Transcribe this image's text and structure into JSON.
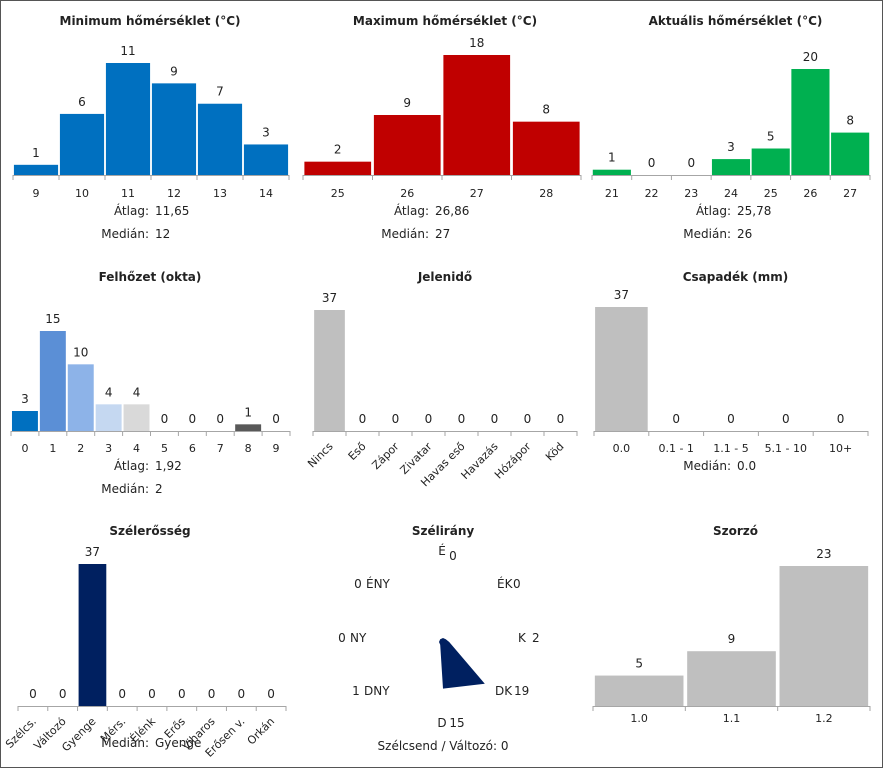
{
  "colors": {
    "blue": "#0070c0",
    "red": "#c00000",
    "green": "#00b050",
    "grey": "#bfbfbf",
    "navy": "#002060",
    "axis": "#a6a6a6",
    "text": "#222222",
    "cloud": [
      "#0070c0",
      "#5b8fd6",
      "#8db3e8",
      "#c5d8f1",
      "#d9d9d9",
      "#d9d9d9",
      "#d9d9d9",
      "#d9d9d9",
      "#595959",
      "#595959"
    ]
  },
  "chart_data": [
    {
      "id": "min",
      "type": "bar",
      "title": "Minimum hőmérséklet (°C)",
      "categories": [
        "9",
        "10",
        "11",
        "12",
        "13",
        "14"
      ],
      "values": [
        1,
        6,
        11,
        9,
        7,
        3
      ],
      "ylim": [
        0,
        11
      ],
      "stats": [
        {
          "label": "Átlag:",
          "value": "11,65"
        },
        {
          "label": "Medián:",
          "value": "12"
        }
      ]
    },
    {
      "id": "max",
      "type": "bar",
      "title": "Maximum hőmérséklet (°C)",
      "categories": [
        "25",
        "26",
        "27",
        "28"
      ],
      "values": [
        2,
        9,
        18,
        8
      ],
      "ylim": [
        0,
        18
      ],
      "stats": [
        {
          "label": "Átlag:",
          "value": "26,86"
        },
        {
          "label": "Medián:",
          "value": "27"
        }
      ]
    },
    {
      "id": "act",
      "type": "bar",
      "title": "Aktuális hőmérséklet (°C)",
      "categories": [
        "21",
        "22",
        "23",
        "24",
        "25",
        "26",
        "27"
      ],
      "values": [
        1,
        0,
        0,
        3,
        5,
        20,
        8
      ],
      "ylim": [
        0,
        20
      ],
      "stats": [
        {
          "label": "Átlag:",
          "value": "25,78"
        },
        {
          "label": "Medián:",
          "value": "26"
        }
      ]
    },
    {
      "id": "cloud",
      "type": "bar",
      "title": "Felhőzet (okta)",
      "categories": [
        "0",
        "1",
        "2",
        "3",
        "4",
        "5",
        "6",
        "7",
        "8",
        "9"
      ],
      "values": [
        3,
        15,
        10,
        4,
        4,
        0,
        0,
        0,
        1,
        0
      ],
      "ylim": [
        0,
        15
      ],
      "stats": [
        {
          "label": "Átlag:",
          "value": "1,92"
        },
        {
          "label": "Medián:",
          "value": "2"
        }
      ]
    },
    {
      "id": "wx",
      "type": "bar",
      "title": "Jelenidő",
      "categories": [
        "Nincs",
        "Eső",
        "Zápor",
        "Zivatar",
        "Havas eső",
        "Havazás",
        "Hózápor",
        "Köd"
      ],
      "values": [
        37,
        0,
        0,
        0,
        0,
        0,
        0,
        0
      ],
      "ylim": [
        0,
        37
      ],
      "stats": []
    },
    {
      "id": "precip",
      "type": "bar",
      "title": "Csapadék (mm)",
      "categories": [
        "0.0",
        "0.1 - 1",
        "1.1 - 5",
        "5.1 - 10",
        "10+"
      ],
      "values": [
        37,
        0,
        0,
        0,
        0
      ],
      "ylim": [
        0,
        37
      ],
      "stats": [
        {
          "label": "Medián:",
          "value": "0.0"
        }
      ]
    },
    {
      "id": "windspd",
      "type": "bar",
      "title": "Szélerősség",
      "categories": [
        "Szélcs.",
        "Változó",
        "Gyenge",
        "Mérs.",
        "Élénk",
        "Erős",
        "Viharos",
        "Erősen v.",
        "Orkán"
      ],
      "values": [
        0,
        0,
        37,
        0,
        0,
        0,
        0,
        0,
        0
      ],
      "ylim": [
        0,
        37
      ],
      "stats": [
        {
          "label": "Medián:",
          "value": "Gyenge"
        }
      ]
    },
    {
      "id": "winddir",
      "type": "radar",
      "title": "Szélirány",
      "directions": [
        "É",
        "ÉK",
        "K",
        "DK",
        "D",
        "DNY",
        "NY",
        "ÉNY"
      ],
      "values": [
        0,
        0,
        2,
        19,
        15,
        1,
        0,
        0
      ],
      "rmax": 37,
      "footer": "Szélcsend / Változó: 0"
    },
    {
      "id": "mult",
      "type": "bar",
      "title": "Szorzó",
      "categories": [
        "1.0",
        "1.1",
        "1.2"
      ],
      "values": [
        5,
        9,
        23
      ],
      "ylim": [
        0,
        23
      ],
      "stats": []
    }
  ]
}
